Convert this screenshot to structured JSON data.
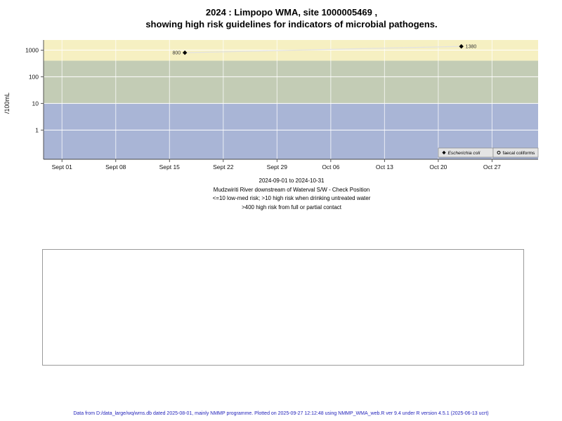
{
  "title": {
    "line1": "2024 : Limpopo WMA, site 1000005469 ,",
    "line2": "showing high risk guidelines for indicators of microbial pathogens."
  },
  "caption": {
    "line1": "2024-09-01 to 2024-10-31",
    "line2": "Mudzwiriti River downstream of Waterval S/W - Check Position",
    "line3": "<=10 low-med risk; >10 high risk when drinking untreated water",
    "line4": ">400 high risk from full or partial contact"
  },
  "footer": {
    "text": "Data from D:/data_large/wq/wms.db dated 2025-08-01, mainly NMMP programme. Plotted on 2025-09-27 12:12:48 using NMMP_WMA_web.R ver 9.4 under R version 4.5.1 (2025-06-13 ucrt)"
  },
  "chart_data": {
    "type": "scatter",
    "title": "2024 : Limpopo WMA, site 1000005469 , showing high risk guidelines for indicators of microbial pathogens.",
    "ylabel": "/100mL",
    "y_scale": "log10",
    "ylim": [
      0.08,
      2400
    ],
    "y_ticks": [
      1,
      10,
      100,
      1000
    ],
    "x_tick_labels": [
      "Sept 01",
      "Sept 08",
      "Sept 15",
      "Sept 22",
      "Sept 29",
      "Oct 06",
      "Oct 13",
      "Oct 20",
      "Oct 27"
    ],
    "x_tick_days": [
      0,
      7,
      14,
      21,
      28,
      35,
      42,
      49,
      56
    ],
    "xlim_days": [
      -2.4,
      62
    ],
    "date_range": "2024-09-01 to 2024-10-31",
    "grid": true,
    "grid_color": "#ffffff",
    "bands": [
      {
        "name": "high-risk-full-partial-contact",
        "threshold": ">400",
        "from": 400,
        "to": 2400,
        "color": "#f6f0c2"
      },
      {
        "name": "high-risk-drinking-untreated",
        "threshold": ">10",
        "from": 10,
        "to": 400,
        "color": "#c3ccb5"
      },
      {
        "name": "low-med-risk",
        "threshold": "<=10",
        "from": 0.08,
        "to": 10,
        "color": "#a9b5d6"
      }
    ],
    "series": [
      {
        "name": "Escherichia coli",
        "marker": "diamond",
        "marker_color": "#000000",
        "line_color": "#e2e2e2",
        "points": [
          {
            "day": 16,
            "value": 800,
            "label": "800",
            "label_side": "left"
          },
          {
            "day": 52,
            "value": 1380,
            "label": "1380",
            "label_side": "right"
          }
        ]
      },
      {
        "name": "faecal coliforms",
        "marker": "circle-open",
        "marker_color": "#000000",
        "points": []
      }
    ],
    "legend": {
      "position": "bottom-right-inside",
      "entries": [
        {
          "label": "Escherichia coli",
          "marker": "diamond",
          "italic": true
        },
        {
          "label": "faecal coliforms",
          "marker": "circle-open",
          "italic": false
        }
      ]
    }
  }
}
